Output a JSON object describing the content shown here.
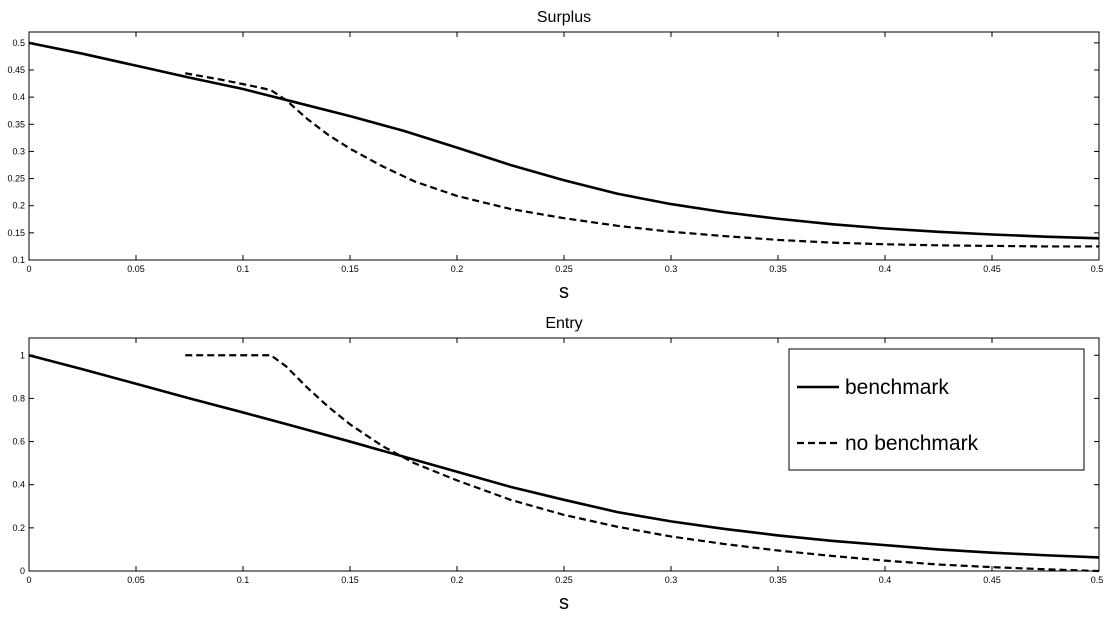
{
  "chart_data": [
    {
      "type": "line",
      "title": "Surplus",
      "xlabel": "s",
      "ylabel": "",
      "xlim": [
        0,
        0.5
      ],
      "ylim": [
        0.1,
        0.52
      ],
      "xticks": [
        0,
        0.05,
        0.1,
        0.15,
        0.2,
        0.25,
        0.3,
        0.35,
        0.4,
        0.45,
        0.5
      ],
      "xtick_labels": [
        "0",
        "0.05",
        "0.1",
        "0.15",
        "0.2",
        "0.25",
        "0.3",
        "0.35",
        "0.4",
        "0.45",
        "0.5"
      ],
      "yticks": [
        0.1,
        0.15,
        0.2,
        0.25,
        0.3,
        0.35,
        0.4,
        0.45,
        0.5
      ],
      "ytick_labels": [
        "0.1",
        "0.15",
        "0.2",
        "0.25",
        "0.3",
        "0.35",
        "0.4",
        "0.45",
        "0.5"
      ],
      "grid": false,
      "series": [
        {
          "name": "benchmark",
          "style": "solid",
          "x": [
            0,
            0.025,
            0.05,
            0.075,
            0.1,
            0.125,
            0.15,
            0.175,
            0.2,
            0.225,
            0.25,
            0.275,
            0.3,
            0.325,
            0.35,
            0.375,
            0.4,
            0.425,
            0.45,
            0.475,
            0.5
          ],
          "y": [
            0.5,
            0.48,
            0.458,
            0.436,
            0.415,
            0.39,
            0.365,
            0.338,
            0.307,
            0.275,
            0.247,
            0.222,
            0.203,
            0.188,
            0.176,
            0.166,
            0.158,
            0.152,
            0.147,
            0.143,
            0.14
          ]
        },
        {
          "name": "no benchmark",
          "style": "dashed",
          "x": [
            0.073,
            0.09,
            0.105,
            0.113,
            0.12,
            0.13,
            0.14,
            0.15,
            0.165,
            0.18,
            0.2,
            0.225,
            0.25,
            0.275,
            0.3,
            0.325,
            0.35,
            0.375,
            0.4,
            0.425,
            0.45,
            0.475,
            0.5
          ],
          "y": [
            0.444,
            0.432,
            0.42,
            0.413,
            0.395,
            0.36,
            0.33,
            0.305,
            0.273,
            0.245,
            0.218,
            0.194,
            0.177,
            0.163,
            0.152,
            0.144,
            0.137,
            0.132,
            0.129,
            0.127,
            0.126,
            0.125,
            0.125
          ]
        }
      ]
    },
    {
      "type": "line",
      "title": "Entry",
      "xlabel": "s",
      "ylabel": "",
      "xlim": [
        0,
        0.5
      ],
      "ylim": [
        0,
        1.08
      ],
      "xticks": [
        0,
        0.05,
        0.1,
        0.15,
        0.2,
        0.25,
        0.3,
        0.35,
        0.4,
        0.45,
        0.5
      ],
      "xtick_labels": [
        "0",
        "0.05",
        "0.1",
        "0.15",
        "0.2",
        "0.25",
        "0.3",
        "0.35",
        "0.4",
        "0.45",
        "0.5"
      ],
      "yticks": [
        0,
        0.2,
        0.4,
        0.6,
        0.8,
        1
      ],
      "ytick_labels": [
        "0",
        "0.2",
        "0.4",
        "0.6",
        "0.8",
        "1"
      ],
      "grid": false,
      "legend": "top-right",
      "series": [
        {
          "name": "benchmark",
          "style": "solid",
          "x": [
            0,
            0.025,
            0.05,
            0.075,
            0.1,
            0.125,
            0.15,
            0.175,
            0.2,
            0.225,
            0.25,
            0.275,
            0.3,
            0.325,
            0.35,
            0.375,
            0.4,
            0.425,
            0.45,
            0.475,
            0.5
          ],
          "y": [
            1.0,
            0.935,
            0.868,
            0.8,
            0.735,
            0.668,
            0.6,
            0.53,
            0.46,
            0.39,
            0.33,
            0.273,
            0.23,
            0.195,
            0.165,
            0.14,
            0.12,
            0.1,
            0.085,
            0.073,
            0.063
          ]
        },
        {
          "name": "no benchmark",
          "style": "dashed",
          "x": [
            0.073,
            0.09,
            0.105,
            0.113,
            0.12,
            0.13,
            0.14,
            0.15,
            0.165,
            0.18,
            0.2,
            0.225,
            0.25,
            0.275,
            0.3,
            0.325,
            0.35,
            0.375,
            0.4,
            0.425,
            0.45,
            0.475,
            0.5
          ],
          "y": [
            1.0,
            1.0,
            1.0,
            1.0,
            0.95,
            0.85,
            0.76,
            0.68,
            0.58,
            0.5,
            0.42,
            0.33,
            0.26,
            0.205,
            0.16,
            0.125,
            0.095,
            0.07,
            0.048,
            0.03,
            0.018,
            0.008,
            0.0
          ]
        }
      ]
    }
  ]
}
